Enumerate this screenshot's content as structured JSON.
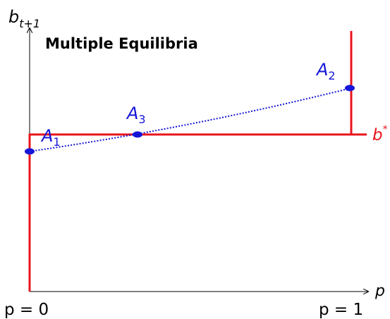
{
  "title": "Multiple Equilibria",
  "axes": {
    "y_label_base": "b",
    "y_label_sub": "t+1",
    "x_label": "p",
    "x_tick_left": "p = 0",
    "x_tick_right": "p = 1"
  },
  "threshold": {
    "label_base": "b",
    "label_sup": "*",
    "color": "#e8141c"
  },
  "curve": {
    "color": "#1515d8",
    "style": "dotted"
  },
  "points": [
    {
      "id": "A1",
      "base": "A",
      "sub": "1"
    },
    {
      "id": "A2",
      "base": "A",
      "sub": "2"
    },
    {
      "id": "A3",
      "base": "A",
      "sub": "3"
    }
  ],
  "colors": {
    "axis": "#000000",
    "point_fill": "#1515d8",
    "red_line": "#e8141c"
  }
}
